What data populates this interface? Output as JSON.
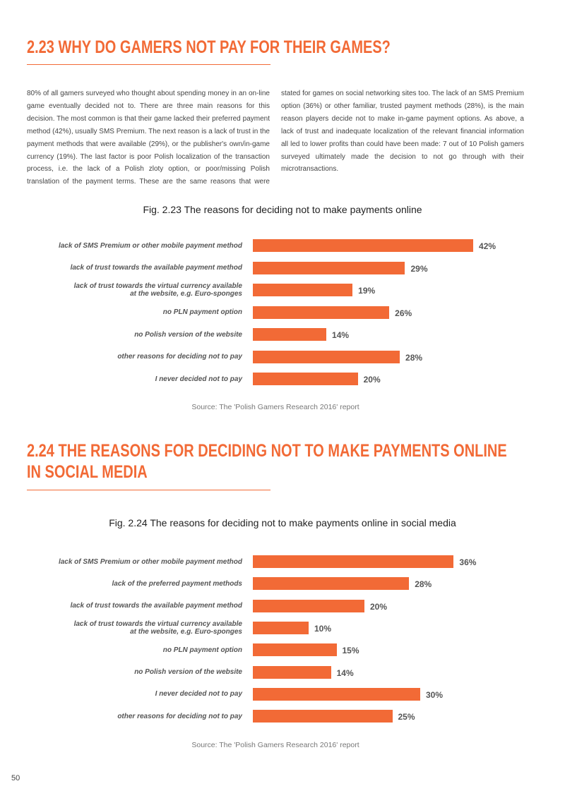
{
  "sections": [
    {
      "title": "2.23 WHY DO GAMERS NOT PAY FOR THEIR GAMES?",
      "paragraph": "80% of all gamers surveyed who thought about spending money in an on-line game eventually decided not to. There are three main reasons for this decision. The most common is that their game lacked their preferred payment method (42%), usually SMS Premium. The next reason is a lack of trust in the payment methods that were available (29%), or the publisher's own/in-game currency (19%). The last factor is poor Polish localization of the transaction process, i.e. the lack of a Polish zloty option, or poor/missing Polish translation of the payment terms. These are the same reasons that were stated for games on social networking sites too. The lack of an SMS Premium option (36%) or other familiar, trusted payment methods (28%), is the main reason players decide not to make in-game payment options. As above, a lack of trust and inadequate localization of the relevant financial information all led to lower profits than could have been made: 7 out of 10 Polish gamers surveyed ultimately made the decision to not go through with their microtransactions."
    },
    {
      "title": "2.24 THE REASONS FOR DECIDING NOT TO MAKE PAYMENTS ONLINE\nIN SOCIAL MEDIA"
    }
  ],
  "chart_data": [
    {
      "type": "bar",
      "orientation": "horizontal",
      "title": "Fig. 2.23 The reasons for deciding not to make payments online",
      "categories": [
        "lack of SMS Premium or other mobile payment method",
        "lack of trust towards the available payment method",
        "lack of trust towards the virtual currency available\nat the website, e.g. Euro-sponges",
        "no PLN payment option",
        "no Polish version of the website",
        "other reasons for deciding not to pay",
        "I never decided not to pay"
      ],
      "values": [
        42,
        29,
        19,
        26,
        14,
        28,
        20
      ],
      "value_labels": [
        "42%",
        "29%",
        "19%",
        "26%",
        "14%",
        "28%",
        "20%"
      ],
      "color": "#f26a36",
      "source": "Source: The 'Polish Gamers Research 2016' report"
    },
    {
      "type": "bar",
      "orientation": "horizontal",
      "title": "Fig. 2.24 The reasons for deciding not to make payments online in social media",
      "categories": [
        "lack of SMS Premium or other mobile payment method",
        "lack of the preferred payment methods",
        "lack of trust towards the available payment method",
        "lack of trust towards the virtual currency available\nat the website, e.g. Euro-sponges",
        "no PLN payment option",
        "no Polish version of the website",
        "I never decided not to pay",
        "other reasons for deciding not to pay"
      ],
      "values": [
        36,
        28,
        20,
        10,
        15,
        14,
        30,
        25
      ],
      "value_labels": [
        "36%",
        "28%",
        "20%",
        "10%",
        "15%",
        "14%",
        "30%",
        "25%"
      ],
      "color": "#f26a36",
      "source": "Source: The 'Polish Gamers Research 2016' report"
    }
  ],
  "page_number": "50"
}
